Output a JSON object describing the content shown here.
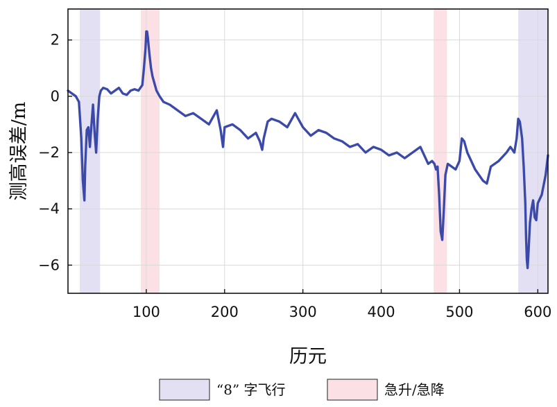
{
  "chart_data": {
    "type": "line",
    "title": "",
    "xlabel": "历元",
    "ylabel": "测高误差/m",
    "xlim": [
      0,
      613
    ],
    "ylim": [
      -7,
      3.1
    ],
    "xticks": [
      100,
      200,
      300,
      400,
      500,
      600
    ],
    "yticks": [
      2,
      0,
      -2,
      -4,
      -6
    ],
    "ytick_labels": [
      "2",
      "0",
      "−2",
      "−4",
      "−6"
    ],
    "grid": true,
    "legend_position": "bottom-center",
    "colors": {
      "line": "#3b4aa8",
      "figure8_band": "#e3e0f3",
      "climb_band": "#fbe0e6",
      "grid": "#d9d9d9",
      "axis": "#111111"
    },
    "bands": [
      {
        "legend": "figure8",
        "x0": 15,
        "x1": 41
      },
      {
        "legend": "climb",
        "x0": 93,
        "x1": 117
      },
      {
        "legend": "climb",
        "x0": 467,
        "x1": 484
      },
      {
        "legend": "figure8",
        "x0": 575,
        "x1": 613
      }
    ],
    "legend": [
      {
        "key": "figure8",
        "label": "“8” 字飞行",
        "color": "#e3e0f3"
      },
      {
        "key": "climb",
        "label": "急升/急降",
        "color": "#fbe0e6"
      }
    ],
    "series": [
      {
        "x": [
          0,
          5,
          10,
          14,
          17,
          19,
          21,
          22,
          24,
          26,
          28,
          30,
          32,
          34,
          36,
          38,
          40,
          42,
          45,
          50,
          55,
          60,
          65,
          70,
          75,
          80,
          85,
          90,
          95,
          97,
          99,
          100,
          101,
          102,
          104,
          106,
          108,
          110,
          113,
          117,
          122,
          130,
          140,
          150,
          160,
          170,
          180,
          190,
          195,
          198,
          200,
          210,
          220,
          230,
          240,
          245,
          248,
          250,
          255,
          260,
          270,
          280,
          290,
          300,
          310,
          320,
          330,
          340,
          350,
          360,
          370,
          380,
          390,
          400,
          410,
          420,
          430,
          440,
          450,
          460,
          465,
          468,
          470,
          472,
          474,
          476,
          478,
          480,
          482,
          485,
          490,
          495,
          500,
          503,
          506,
          510,
          520,
          530,
          535,
          540,
          550,
          560,
          565,
          570,
          573,
          575,
          577,
          580,
          582,
          584,
          585,
          586,
          587,
          588,
          590,
          592,
          594,
          596,
          598,
          600,
          605,
          610,
          613
        ],
        "values": [
          0.2,
          0.1,
          0.0,
          -0.2,
          -1.5,
          -3.0,
          -3.7,
          -2.5,
          -1.2,
          -1.1,
          -1.8,
          -1.0,
          -0.3,
          -1.3,
          -2.0,
          -0.8,
          0.0,
          0.2,
          0.3,
          0.25,
          0.1,
          0.2,
          0.3,
          0.1,
          0.05,
          0.2,
          0.25,
          0.2,
          0.4,
          1.0,
          1.7,
          2.3,
          2.3,
          2.1,
          1.5,
          1.0,
          0.7,
          0.5,
          0.2,
          0.0,
          -0.2,
          -0.3,
          -0.5,
          -0.7,
          -0.6,
          -0.8,
          -1.0,
          -0.5,
          -1.2,
          -1.8,
          -1.1,
          -1.0,
          -1.2,
          -1.5,
          -1.3,
          -1.6,
          -1.9,
          -1.5,
          -0.9,
          -0.8,
          -0.9,
          -1.1,
          -0.6,
          -1.1,
          -1.4,
          -1.2,
          -1.3,
          -1.5,
          -1.6,
          -1.8,
          -1.7,
          -2.0,
          -1.8,
          -1.9,
          -2.1,
          -2.0,
          -2.2,
          -2.0,
          -1.8,
          -2.4,
          -2.3,
          -2.4,
          -2.6,
          -2.5,
          -3.5,
          -4.8,
          -5.1,
          -4.0,
          -2.8,
          -2.4,
          -2.5,
          -2.6,
          -2.3,
          -1.5,
          -1.6,
          -2.0,
          -2.6,
          -3.0,
          -3.1,
          -2.5,
          -2.3,
          -2.0,
          -1.8,
          -2.0,
          -1.5,
          -0.8,
          -0.9,
          -1.5,
          -2.5,
          -3.8,
          -5.0,
          -5.8,
          -6.1,
          -5.6,
          -4.5,
          -4.0,
          -3.7,
          -4.3,
          -4.4,
          -3.8,
          -3.5,
          -2.8,
          -2.1
        ]
      }
    ]
  }
}
